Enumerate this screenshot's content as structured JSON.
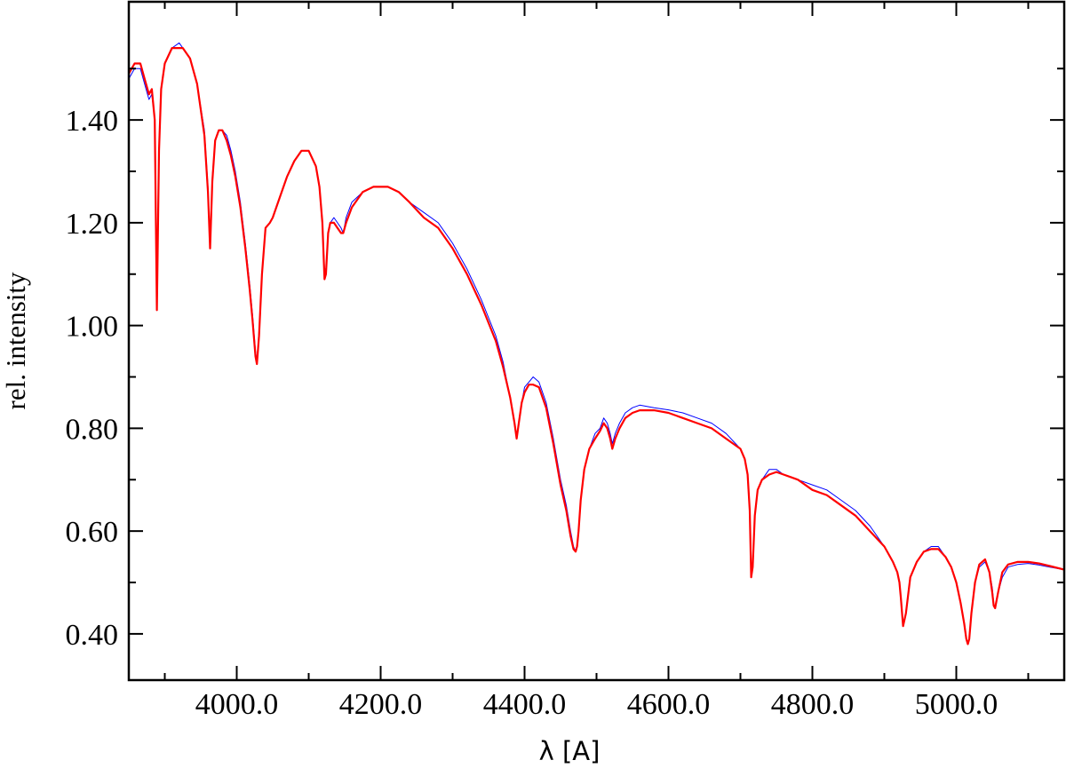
{
  "chart_data": {
    "type": "line",
    "title": "",
    "xlabel": "λ [A]",
    "ylabel": "rel. intensity",
    "xlim": [
      3850,
      5150
    ],
    "ylim": [
      0.31,
      1.63
    ],
    "xticks": [
      4000,
      4200,
      4400,
      4600,
      4800,
      5000
    ],
    "xtick_labels": [
      "4000.0",
      "4200.0",
      "4400.0",
      "4600.0",
      "4800.0",
      "5000.0"
    ],
    "yticks": [
      0.4,
      0.6,
      0.8,
      1.0,
      1.2,
      1.4
    ],
    "ytick_labels": [
      "0.40",
      "0.60",
      "0.80",
      "1.00",
      "1.20",
      "1.40"
    ],
    "grid": false,
    "legend": "none",
    "series": [
      {
        "color": "#0000ff",
        "width": 1,
        "x": [
          3850,
          3858,
          3866,
          3872,
          3878,
          3882,
          3886,
          3889,
          3892,
          3895,
          3900,
          3910,
          3920,
          3925,
          3935,
          3945,
          3955,
          3960,
          3963,
          3966,
          3970,
          3975,
          3980,
          3986,
          3992,
          3998,
          4005,
          4012,
          4018,
          4022,
          4026,
          4028,
          4031,
          4035,
          4040,
          4046,
          4050,
          4060,
          4070,
          4080,
          4090,
          4100,
          4110,
          4115,
          4119,
          4122,
          4124,
          4127,
          4130,
          4135,
          4140,
          4145,
          4148,
          4152,
          4160,
          4175,
          4190,
          4200,
          4210,
          4225,
          4240,
          4260,
          4280,
          4300,
          4320,
          4340,
          4360,
          4370,
          4380,
          4386,
          4389,
          4392,
          4396,
          4400,
          4406,
          4412,
          4420,
          4430,
          4440,
          4450,
          4458,
          4464,
          4468,
          4471,
          4473,
          4475,
          4478,
          4483,
          4490,
          4498,
          4505,
          4510,
          4515,
          4519,
          4522,
          4526,
          4532,
          4540,
          4550,
          4560,
          4580,
          4600,
          4620,
          4640,
          4660,
          4680,
          4700,
          4706,
          4710,
          4713,
          4715,
          4717,
          4720,
          4724,
          4730,
          4740,
          4750,
          4760,
          4780,
          4800,
          4820,
          4840,
          4860,
          4880,
          4900,
          4912,
          4918,
          4921,
          4923,
          4926,
          4930,
          4936,
          4945,
          4955,
          4965,
          4975,
          4985,
          4993,
          5000,
          5006,
          5011,
          5014,
          5016,
          5018,
          5021,
          5026,
          5032,
          5040,
          5046,
          5050,
          5052,
          5054,
          5058,
          5064,
          5072,
          5085,
          5100,
          5115,
          5130,
          5150
        ],
        "y": [
          1.48,
          1.5,
          1.5,
          1.47,
          1.44,
          1.45,
          1.4,
          1.08,
          1.34,
          1.46,
          1.51,
          1.54,
          1.55,
          1.54,
          1.52,
          1.47,
          1.38,
          1.27,
          1.15,
          1.29,
          1.36,
          1.38,
          1.38,
          1.37,
          1.34,
          1.3,
          1.24,
          1.16,
          1.08,
          1.02,
          0.95,
          0.93,
          0.98,
          1.1,
          1.19,
          1.2,
          1.21,
          1.25,
          1.29,
          1.32,
          1.34,
          1.34,
          1.31,
          1.27,
          1.2,
          1.11,
          1.11,
          1.18,
          1.2,
          1.21,
          1.2,
          1.19,
          1.18,
          1.21,
          1.24,
          1.26,
          1.27,
          1.27,
          1.27,
          1.26,
          1.24,
          1.22,
          1.2,
          1.16,
          1.11,
          1.05,
          0.98,
          0.93,
          0.86,
          0.81,
          0.78,
          0.81,
          0.85,
          0.88,
          0.89,
          0.9,
          0.89,
          0.85,
          0.78,
          0.7,
          0.65,
          0.6,
          0.57,
          0.56,
          0.57,
          0.6,
          0.66,
          0.72,
          0.76,
          0.79,
          0.8,
          0.82,
          0.81,
          0.79,
          0.77,
          0.79,
          0.81,
          0.83,
          0.84,
          0.845,
          0.84,
          0.836,
          0.83,
          0.82,
          0.81,
          0.79,
          0.76,
          0.74,
          0.71,
          0.64,
          0.53,
          0.54,
          0.63,
          0.68,
          0.7,
          0.72,
          0.72,
          0.71,
          0.7,
          0.69,
          0.68,
          0.66,
          0.64,
          0.61,
          0.57,
          0.54,
          0.52,
          0.5,
          0.47,
          0.42,
          0.44,
          0.51,
          0.54,
          0.56,
          0.57,
          0.57,
          0.55,
          0.53,
          0.5,
          0.46,
          0.42,
          0.39,
          0.38,
          0.39,
          0.44,
          0.5,
          0.53,
          0.54,
          0.52,
          0.49,
          0.46,
          0.45,
          0.48,
          0.51,
          0.53,
          0.535,
          0.537,
          0.534,
          0.53,
          0.525
        ]
      },
      {
        "color": "#ff0000",
        "width": 2.2,
        "x": [
          3850,
          3858,
          3866,
          3872,
          3878,
          3882,
          3886,
          3889,
          3892,
          3895,
          3900,
          3910,
          3920,
          3925,
          3935,
          3945,
          3955,
          3960,
          3963,
          3966,
          3970,
          3975,
          3980,
          3986,
          3992,
          3998,
          4005,
          4012,
          4018,
          4022,
          4026,
          4028,
          4031,
          4035,
          4040,
          4046,
          4050,
          4060,
          4070,
          4080,
          4090,
          4100,
          4110,
          4115,
          4119,
          4122,
          4124,
          4127,
          4130,
          4135,
          4140,
          4145,
          4148,
          4152,
          4160,
          4175,
          4190,
          4200,
          4210,
          4225,
          4240,
          4260,
          4280,
          4300,
          4320,
          4340,
          4360,
          4370,
          4380,
          4386,
          4389,
          4392,
          4396,
          4400,
          4406,
          4412,
          4420,
          4430,
          4440,
          4450,
          4458,
          4464,
          4468,
          4471,
          4473,
          4475,
          4478,
          4483,
          4490,
          4498,
          4505,
          4510,
          4515,
          4519,
          4522,
          4526,
          4532,
          4540,
          4550,
          4560,
          4580,
          4600,
          4620,
          4640,
          4660,
          4680,
          4700,
          4706,
          4710,
          4713,
          4715,
          4717,
          4720,
          4724,
          4730,
          4740,
          4750,
          4760,
          4780,
          4800,
          4820,
          4840,
          4860,
          4880,
          4900,
          4912,
          4918,
          4921,
          4923,
          4926,
          4930,
          4936,
          4945,
          4955,
          4965,
          4975,
          4985,
          4993,
          5000,
          5006,
          5011,
          5014,
          5016,
          5018,
          5021,
          5026,
          5032,
          5040,
          5046,
          5050,
          5052,
          5054,
          5058,
          5064,
          5072,
          5085,
          5100,
          5115,
          5130,
          5150
        ],
        "y": [
          1.49,
          1.51,
          1.51,
          1.48,
          1.45,
          1.46,
          1.4,
          1.03,
          1.34,
          1.46,
          1.51,
          1.54,
          1.54,
          1.54,
          1.52,
          1.47,
          1.37,
          1.26,
          1.15,
          1.28,
          1.36,
          1.38,
          1.38,
          1.36,
          1.33,
          1.29,
          1.23,
          1.15,
          1.07,
          1.01,
          0.94,
          0.925,
          0.98,
          1.1,
          1.19,
          1.2,
          1.21,
          1.25,
          1.29,
          1.32,
          1.34,
          1.34,
          1.31,
          1.27,
          1.2,
          1.09,
          1.1,
          1.18,
          1.2,
          1.2,
          1.19,
          1.18,
          1.18,
          1.2,
          1.23,
          1.26,
          1.27,
          1.27,
          1.27,
          1.26,
          1.24,
          1.21,
          1.19,
          1.15,
          1.1,
          1.04,
          0.97,
          0.92,
          0.86,
          0.81,
          0.78,
          0.81,
          0.85,
          0.87,
          0.885,
          0.885,
          0.88,
          0.84,
          0.77,
          0.69,
          0.64,
          0.59,
          0.565,
          0.56,
          0.57,
          0.6,
          0.66,
          0.72,
          0.76,
          0.78,
          0.795,
          0.81,
          0.8,
          0.78,
          0.76,
          0.78,
          0.8,
          0.82,
          0.83,
          0.835,
          0.835,
          0.83,
          0.82,
          0.81,
          0.8,
          0.78,
          0.76,
          0.74,
          0.71,
          0.64,
          0.51,
          0.53,
          0.63,
          0.68,
          0.7,
          0.71,
          0.715,
          0.71,
          0.7,
          0.68,
          0.67,
          0.65,
          0.63,
          0.6,
          0.57,
          0.54,
          0.52,
          0.5,
          0.47,
          0.415,
          0.44,
          0.51,
          0.54,
          0.56,
          0.565,
          0.565,
          0.55,
          0.53,
          0.5,
          0.46,
          0.42,
          0.39,
          0.38,
          0.39,
          0.44,
          0.5,
          0.535,
          0.545,
          0.52,
          0.48,
          0.455,
          0.45,
          0.48,
          0.52,
          0.535,
          0.54,
          0.54,
          0.537,
          0.532,
          0.525
        ]
      }
    ]
  }
}
